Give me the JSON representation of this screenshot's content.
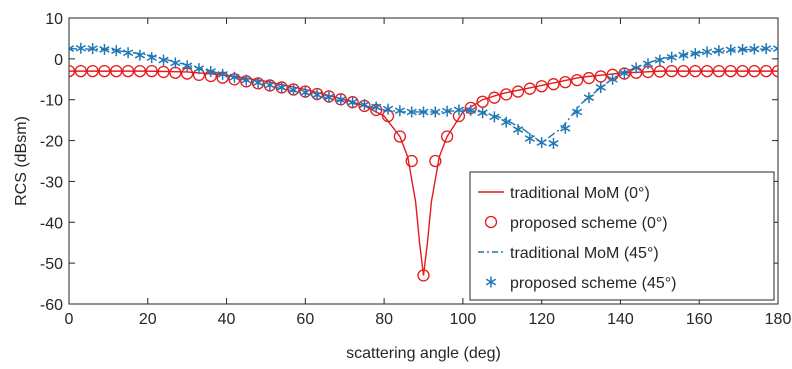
{
  "chart_data": {
    "type": "line",
    "title": "",
    "xlabel": "scattering angle (deg)",
    "ylabel": "RCS (dBsm)",
    "xlim": [
      0,
      180
    ],
    "ylim": [
      -60,
      10
    ],
    "xticks": [
      0,
      20,
      40,
      60,
      80,
      100,
      120,
      140,
      160,
      180
    ],
    "yticks": [
      -60,
      -50,
      -40,
      -30,
      -20,
      -10,
      0,
      10
    ],
    "grid": false,
    "legend_position": "bottom-right",
    "colors": {
      "red": "#e41a1c",
      "blue": "#1f77b4"
    },
    "series": [
      {
        "name": "traditional MoM (0°)",
        "style": "line",
        "color": "#e41a1c",
        "x": [
          0,
          10,
          20,
          30,
          40,
          50,
          60,
          70,
          75,
          80,
          84,
          86,
          88,
          89,
          90,
          91,
          92,
          94,
          96,
          100,
          105,
          110,
          120,
          130,
          140,
          150,
          160,
          170,
          180
        ],
        "y": [
          -3,
          -3,
          -3,
          -3.2,
          -4,
          -5.5,
          -7.5,
          -10,
          -11.5,
          -14,
          -19,
          -24,
          -35,
          -45,
          -53,
          -45,
          -35,
          -24,
          -19,
          -13,
          -10,
          -8.5,
          -6.5,
          -4.5,
          -3.5,
          -3,
          -3,
          -3,
          -3
        ]
      },
      {
        "name": "proposed scheme (0°)",
        "style": "marker-circle",
        "color": "#e41a1c",
        "x": [
          0,
          3,
          6,
          9,
          12,
          15,
          18,
          21,
          24,
          27,
          30,
          33,
          36,
          39,
          42,
          45,
          48,
          51,
          54,
          57,
          60,
          63,
          66,
          69,
          72,
          75,
          78,
          81,
          84,
          87,
          90,
          93,
          96,
          99,
          102,
          105,
          108,
          111,
          114,
          117,
          120,
          123,
          126,
          129,
          132,
          135,
          138,
          141,
          144,
          147,
          150,
          153,
          156,
          159,
          162,
          165,
          168,
          171,
          174,
          177,
          180
        ],
        "y": [
          -3,
          -3,
          -3,
          -3,
          -3,
          -3,
          -3,
          -3,
          -3.2,
          -3.4,
          -3.6,
          -3.9,
          -4.2,
          -4.6,
          -5,
          -5.5,
          -6,
          -6.5,
          -7,
          -7.5,
          -8,
          -8.6,
          -9.2,
          -9.9,
          -10.6,
          -11.5,
          -12.5,
          -14,
          -19,
          -25,
          -53,
          -25,
          -19,
          -14,
          -12,
          -10.5,
          -9.5,
          -8.7,
          -8,
          -7.3,
          -6.7,
          -6.2,
          -5.7,
          -5.2,
          -4.7,
          -4.3,
          -3.9,
          -3.6,
          -3.4,
          -3.2,
          -3.1,
          -3,
          -3,
          -3,
          -3,
          -3,
          -3,
          -3,
          -3,
          -3,
          -3
        ]
      },
      {
        "name": "traditional MoM (45°)",
        "style": "dashdot",
        "color": "#1f77b4",
        "x": [
          0,
          10,
          20,
          30,
          40,
          50,
          60,
          70,
          80,
          85,
          90,
          95,
          100,
          105,
          110,
          115,
          120,
          125,
          130,
          135,
          140,
          150,
          160,
          170,
          180
        ],
        "y": [
          2.5,
          2.3,
          1,
          -1.5,
          -4,
          -6.5,
          -8.5,
          -10.5,
          -12.5,
          -13,
          -13,
          -13,
          -12.5,
          -13,
          -14.5,
          -17,
          -20.5,
          -17,
          -11,
          -7,
          -3.5,
          0,
          1.5,
          2.2,
          2.5
        ]
      },
      {
        "name": "proposed scheme (45°)",
        "style": "marker-star",
        "color": "#1f77b4",
        "x": [
          0,
          3,
          6,
          9,
          12,
          15,
          18,
          21,
          24,
          27,
          30,
          33,
          36,
          39,
          42,
          45,
          48,
          51,
          54,
          57,
          60,
          63,
          66,
          69,
          72,
          75,
          78,
          81,
          84,
          87,
          90,
          93,
          96,
          99,
          102,
          105,
          108,
          111,
          114,
          117,
          120,
          123,
          126,
          129,
          132,
          135,
          138,
          141,
          144,
          147,
          150,
          153,
          156,
          159,
          162,
          165,
          168,
          171,
          174,
          177,
          180
        ],
        "y": [
          2.5,
          2.6,
          2.5,
          2.3,
          2,
          1.5,
          0.9,
          0.3,
          -0.3,
          -1,
          -1.7,
          -2.4,
          -3.1,
          -3.8,
          -4.5,
          -5.2,
          -5.8,
          -6.4,
          -7,
          -7.6,
          -8.2,
          -8.8,
          -9.4,
          -10,
          -10.6,
          -11.2,
          -11.8,
          -12.3,
          -12.7,
          -13,
          -13,
          -13,
          -12.8,
          -12.5,
          -12.6,
          -13.2,
          -14.2,
          -15.5,
          -17.3,
          -19.5,
          -20.5,
          -20.7,
          -17,
          -13,
          -9.5,
          -7,
          -5,
          -3.5,
          -2.2,
          -1.2,
          -0.3,
          0.4,
          0.9,
          1.3,
          1.7,
          2,
          2.2,
          2.3,
          2.4,
          2.5,
          2.5
        ]
      }
    ]
  }
}
